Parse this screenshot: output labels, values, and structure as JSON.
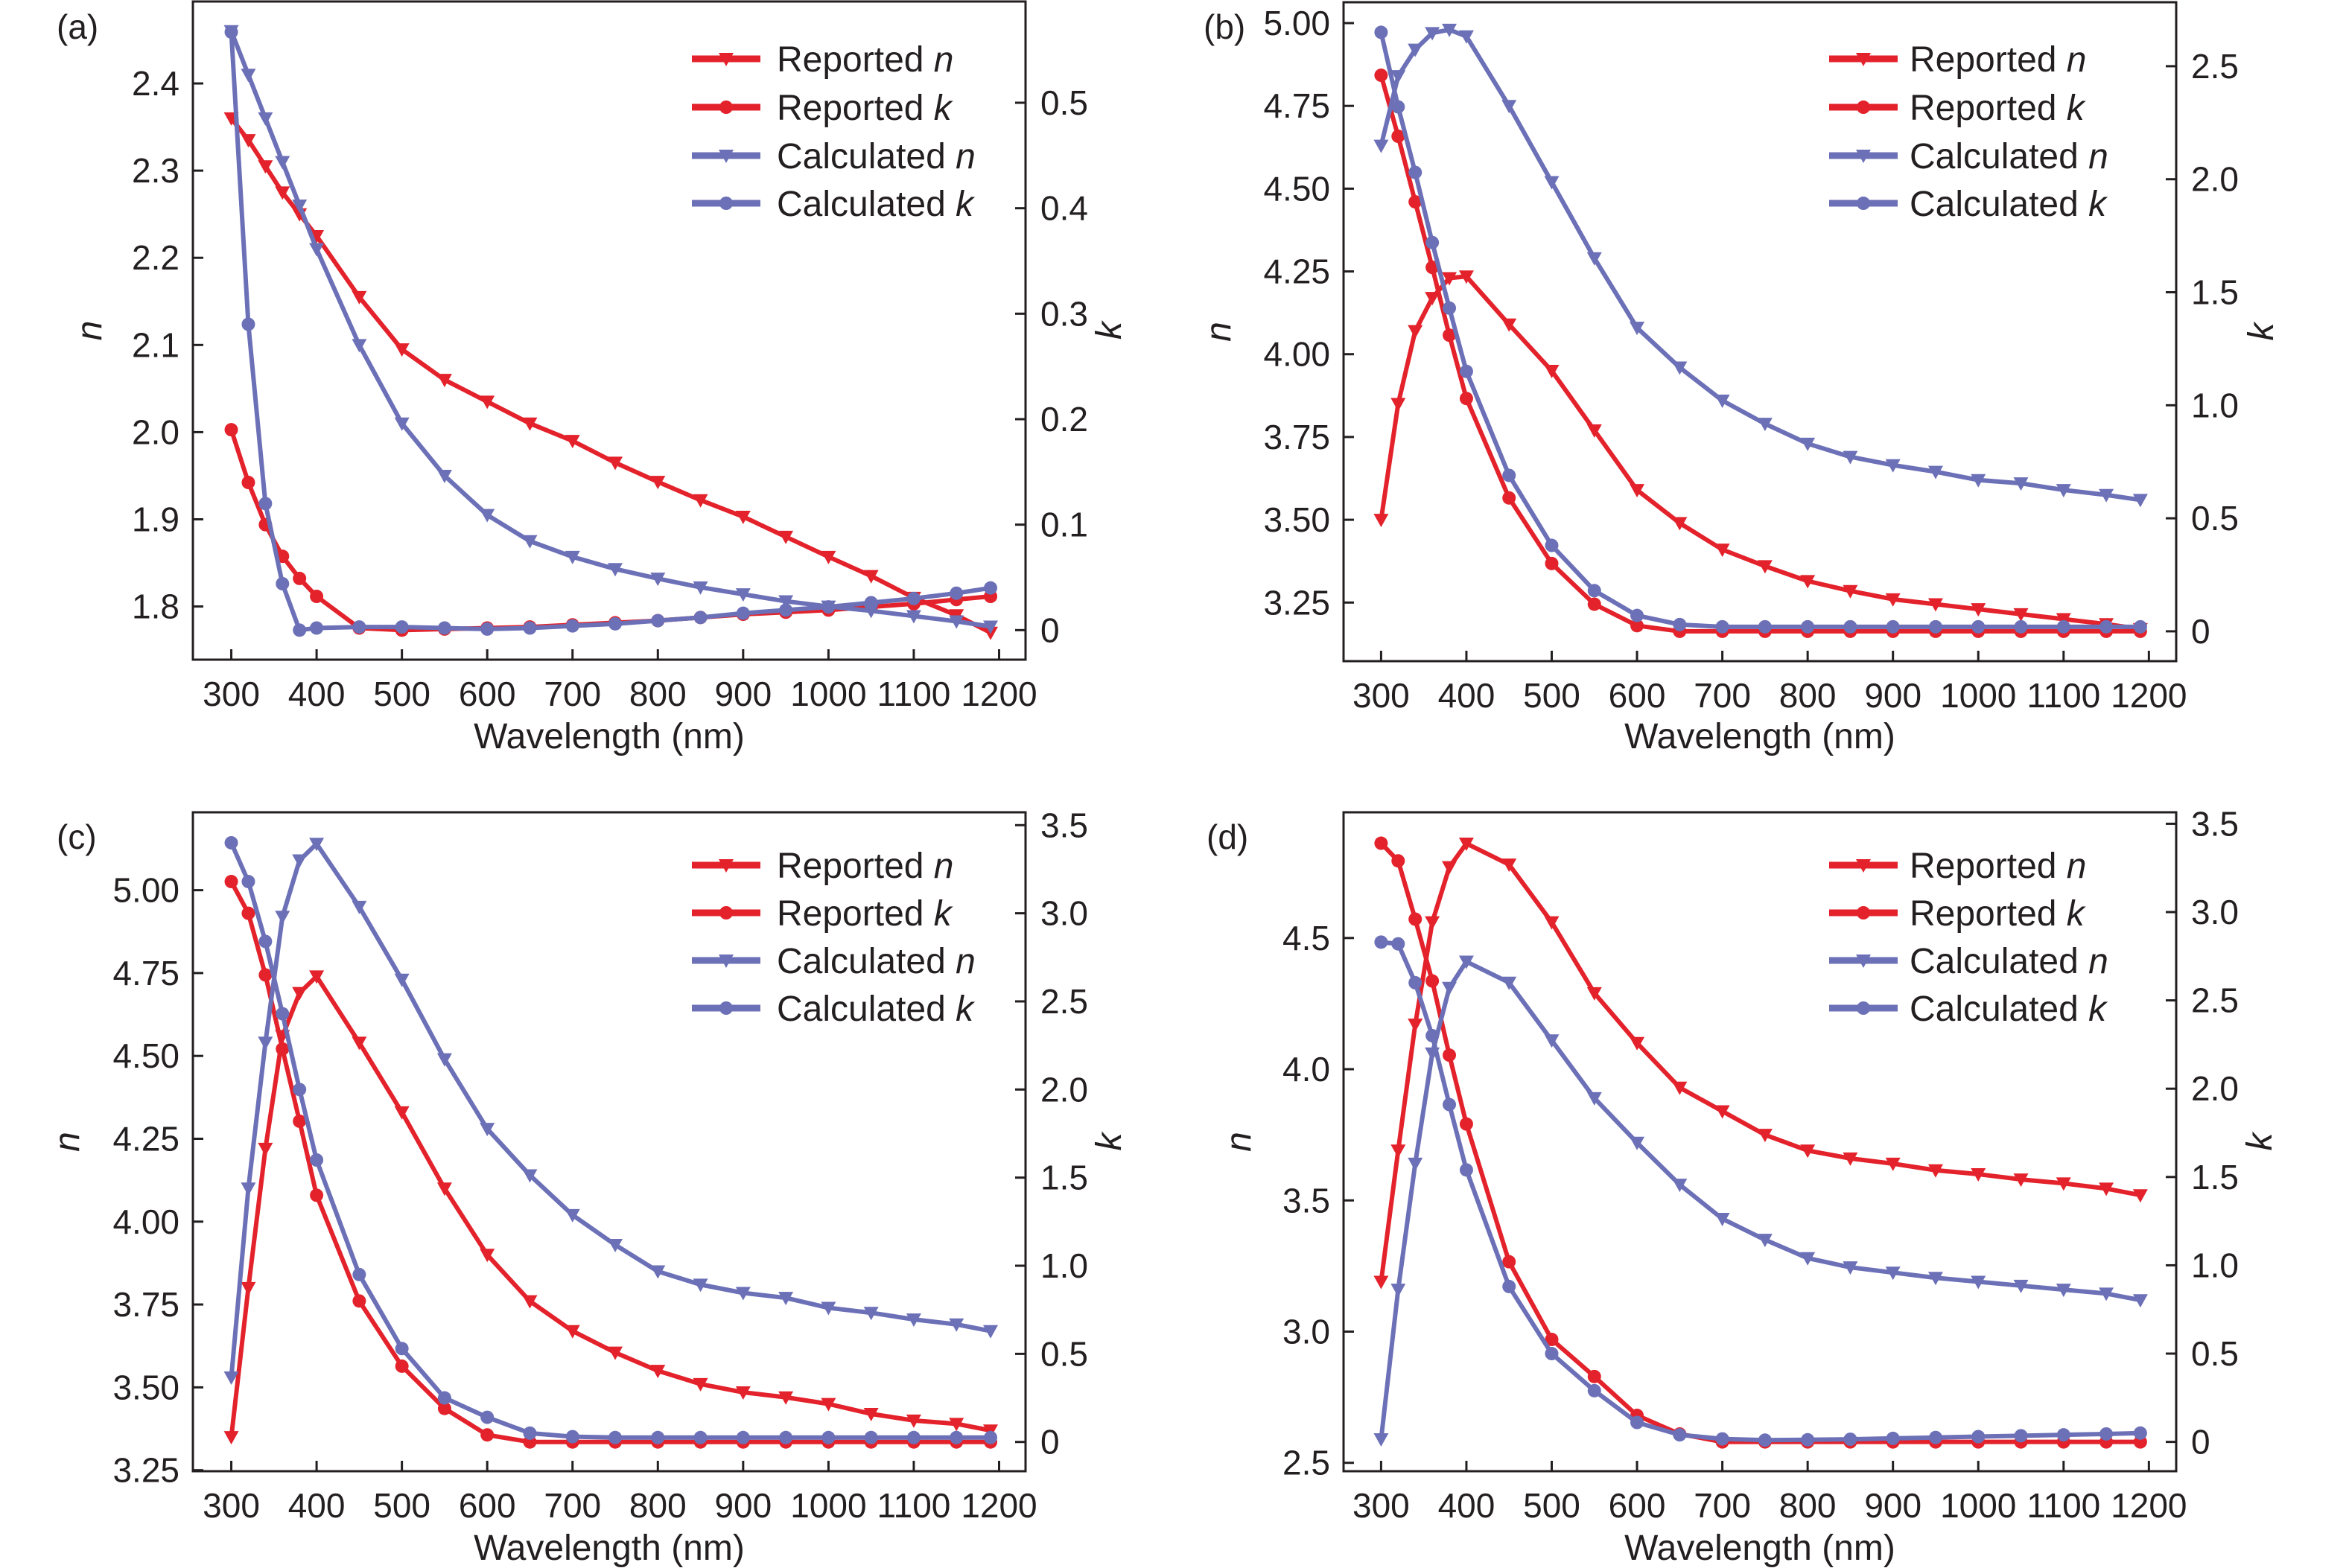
{
  "colors": {
    "reported": "#e3222b",
    "calculated": "#6c70b7",
    "axis": "#231f20"
  },
  "markers": {
    "n": "triangle-down",
    "k": "circle"
  },
  "chart_data": [
    {
      "panel_label": "(a)",
      "type": "line",
      "xlabel": "Wavelength (nm)",
      "ylabel": "n",
      "y2label": "k",
      "xlim": [
        255,
        1231
      ],
      "ylim": [
        1.739,
        2.494
      ],
      "y2lim": [
        -0.028,
        0.596
      ],
      "xticks": [
        300,
        400,
        500,
        600,
        700,
        800,
        900,
        1000,
        1100,
        1200
      ],
      "xtick_labels": [
        "300",
        "400",
        "500",
        "600",
        "700",
        "800",
        "900",
        "1000",
        "1100",
        "1200"
      ],
      "yticks": [
        1.8,
        1.9,
        2.0,
        2.1,
        2.2,
        2.3,
        2.4
      ],
      "ytick_labels": [
        "1.8",
        "1.9",
        "2.0",
        "2.1",
        "2.2",
        "2.3",
        "2.4"
      ],
      "y2ticks": [
        0,
        0.1,
        0.2,
        0.3,
        0.4,
        0.5
      ],
      "y2tick_labels": [
        "0",
        "0.1",
        "0.2",
        "0.3",
        "0.4",
        "0.5"
      ],
      "legend_position": "top-right",
      "x": [
        300,
        320,
        340,
        360,
        380,
        400,
        450,
        500,
        550,
        600,
        650,
        700,
        750,
        800,
        850,
        900,
        950,
        1000,
        1050,
        1100,
        1150,
        1190
      ],
      "series": [
        {
          "name": "Reported n",
          "axis": "left",
          "marker": "n",
          "color": "reported",
          "values": [
            2.36,
            2.335,
            2.305,
            2.275,
            2.25,
            2.225,
            2.155,
            2.095,
            2.06,
            2.035,
            2.01,
            1.99,
            1.965,
            1.943,
            1.922,
            1.903,
            1.88,
            1.857,
            1.835,
            1.81,
            1.79,
            1.77
          ]
        },
        {
          "name": "Reported k",
          "axis": "right",
          "marker": "k",
          "color": "reported",
          "values": [
            0.19,
            0.14,
            0.1,
            0.07,
            0.049,
            0.032,
            0.002,
            0,
            0.001,
            0.002,
            0.003,
            0.005,
            0.007,
            0.009,
            0.012,
            0.015,
            0.017,
            0.019,
            0.022,
            0.025,
            0.029,
            0.032
          ]
        },
        {
          "name": "Calculated n",
          "axis": "left",
          "marker": "n",
          "color": "calculated",
          "values": [
            2.46,
            2.41,
            2.36,
            2.31,
            2.26,
            2.21,
            2.1,
            2.01,
            1.95,
            1.905,
            1.875,
            1.857,
            1.843,
            1.832,
            1.822,
            1.814,
            1.806,
            1.8,
            1.795,
            1.789,
            1.783,
            1.777
          ]
        },
        {
          "name": "Calculated k",
          "axis": "right",
          "marker": "k",
          "color": "calculated",
          "values": [
            0.567,
            0.29,
            0.12,
            0.044,
            0,
            0.002,
            0.003,
            0.003,
            0.002,
            0.001,
            0.002,
            0.004,
            0.006,
            0.009,
            0.012,
            0.016,
            0.019,
            0.022,
            0.026,
            0.03,
            0.035,
            0.04
          ]
        }
      ]
    },
    {
      "panel_label": "(b)",
      "type": "line",
      "xlabel": "Wavelength (nm)",
      "ylabel": "n",
      "y2label": "k",
      "xlim": [
        256,
        1232
      ],
      "ylim": [
        3.073,
        5.063
      ],
      "y2lim": [
        -0.132,
        2.783
      ],
      "xticks": [
        300,
        400,
        500,
        600,
        700,
        800,
        900,
        1000,
        1100,
        1200
      ],
      "xtick_labels": [
        "300",
        "400",
        "500",
        "600",
        "700",
        "800",
        "900",
        "1000",
        "1100",
        "1200"
      ],
      "yticks": [
        3.25,
        3.5,
        3.75,
        4.0,
        4.25,
        4.5,
        4.75,
        5.0
      ],
      "ytick_labels": [
        "3.25",
        "3.50",
        "3.75",
        "4.00",
        "4.25",
        "4.50",
        "4.75",
        "5.00"
      ],
      "y2ticks": [
        0,
        0.5,
        1.0,
        1.5,
        2.0,
        2.5
      ],
      "y2tick_labels": [
        "0",
        "0.5",
        "1.0",
        "1.5",
        "2.0",
        "2.5"
      ],
      "legend_position": "top-right",
      "x": [
        300,
        320,
        340,
        360,
        380,
        400,
        450,
        500,
        550,
        600,
        650,
        700,
        750,
        800,
        850,
        900,
        950,
        1000,
        1050,
        1100,
        1150,
        1190
      ],
      "series": [
        {
          "name": "Reported n",
          "axis": "left",
          "marker": "n",
          "color": "reported",
          "values": [
            3.5,
            3.85,
            4.07,
            4.17,
            4.23,
            4.235,
            4.09,
            3.95,
            3.77,
            3.59,
            3.49,
            3.41,
            3.36,
            3.315,
            3.285,
            3.26,
            3.245,
            3.23,
            3.215,
            3.2,
            3.185,
            3.17
          ]
        },
        {
          "name": "Reported k",
          "axis": "right",
          "marker": "k",
          "color": "reported",
          "values": [
            2.46,
            2.19,
            1.9,
            1.61,
            1.31,
            1.03,
            0.59,
            0.3,
            0.12,
            0.025,
            0,
            0,
            0,
            0,
            0,
            0,
            0,
            0,
            0,
            0,
            0,
            0
          ]
        },
        {
          "name": "Calculated n",
          "axis": "left",
          "marker": "n",
          "color": "calculated",
          "values": [
            4.63,
            4.84,
            4.92,
            4.97,
            4.98,
            4.96,
            4.75,
            4.52,
            4.29,
            4.08,
            3.96,
            3.86,
            3.79,
            3.73,
            3.69,
            3.665,
            3.645,
            3.62,
            3.61,
            3.59,
            3.575,
            3.56
          ]
        },
        {
          "name": "Calculated k",
          "axis": "right",
          "marker": "k",
          "color": "calculated",
          "values": [
            2.65,
            2.32,
            2.03,
            1.72,
            1.43,
            1.15,
            0.69,
            0.38,
            0.18,
            0.07,
            0.03,
            0.02,
            0.02,
            0.02,
            0.02,
            0.02,
            0.02,
            0.02,
            0.02,
            0.02,
            0.02,
            0.02
          ]
        }
      ]
    },
    {
      "panel_label": "(c)",
      "type": "line",
      "xlabel": "Wavelength (nm)",
      "ylabel": "n",
      "y2label": "k",
      "xlim": [
        255,
        1231
      ],
      "ylim": [
        3.247,
        5.235
      ],
      "y2lim": [
        -0.166,
        3.573
      ],
      "xticks": [
        300,
        400,
        500,
        600,
        700,
        800,
        900,
        1000,
        1100,
        1200
      ],
      "xtick_labels": [
        "300",
        "400",
        "500",
        "600",
        "700",
        "800",
        "900",
        "1000",
        "1100",
        "1200"
      ],
      "yticks": [
        3.25,
        3.5,
        3.75,
        4.0,
        4.25,
        4.5,
        4.75,
        5.0
      ],
      "ytick_labels": [
        "3.25",
        "3.50",
        "3.75",
        "4.00",
        "4.25",
        "4.50",
        "4.75",
        "5.00"
      ],
      "y2ticks": [
        0,
        0.5,
        1.0,
        1.5,
        2.0,
        2.5,
        3.0,
        3.5
      ],
      "y2tick_labels": [
        "0",
        "0.5",
        "1.0",
        "1.5",
        "2.0",
        "2.5",
        "3.0",
        "3.5"
      ],
      "legend_position": "top-right",
      "x": [
        300,
        320,
        340,
        360,
        380,
        400,
        450,
        500,
        550,
        600,
        650,
        700,
        750,
        800,
        850,
        900,
        950,
        1000,
        1050,
        1100,
        1150,
        1190
      ],
      "series": [
        {
          "name": "Reported n",
          "axis": "left",
          "marker": "n",
          "color": "reported",
          "values": [
            3.35,
            3.8,
            4.22,
            4.56,
            4.69,
            4.74,
            4.54,
            4.33,
            4.1,
            3.9,
            3.76,
            3.67,
            3.605,
            3.55,
            3.51,
            3.485,
            3.47,
            3.45,
            3.42,
            3.4,
            3.39,
            3.37
          ]
        },
        {
          "name": "Reported k",
          "axis": "right",
          "marker": "k",
          "color": "reported",
          "values": [
            3.18,
            3.0,
            2.65,
            2.23,
            1.82,
            1.4,
            0.8,
            0.43,
            0.19,
            0.04,
            0,
            0,
            0,
            0,
            0,
            0,
            0,
            0,
            0,
            0,
            0,
            0
          ]
        },
        {
          "name": "Calculated n",
          "axis": "left",
          "marker": "n",
          "color": "calculated",
          "values": [
            3.53,
            4.1,
            4.54,
            4.92,
            5.09,
            5.14,
            4.95,
            4.73,
            4.49,
            4.28,
            4.14,
            4.02,
            3.93,
            3.85,
            3.81,
            3.785,
            3.77,
            3.74,
            3.725,
            3.705,
            3.69,
            3.67
          ]
        },
        {
          "name": "Calculated k",
          "axis": "right",
          "marker": "k",
          "color": "calculated",
          "values": [
            3.4,
            3.18,
            2.84,
            2.43,
            2.0,
            1.6,
            0.95,
            0.53,
            0.25,
            0.14,
            0.05,
            0.03,
            0.025,
            0.025,
            0.025,
            0.025,
            0.025,
            0.025,
            0.025,
            0.025,
            0.025,
            0.025
          ]
        }
      ]
    },
    {
      "panel_label": "(d)",
      "type": "line",
      "xlabel": "Wavelength (nm)",
      "ylabel": "n",
      "y2label": "k",
      "xlim": [
        256,
        1232
      ],
      "ylim": [
        2.468,
        4.979
      ],
      "y2lim": [
        -0.166,
        3.565
      ],
      "xticks": [
        300,
        400,
        500,
        600,
        700,
        800,
        900,
        1000,
        1100,
        1200
      ],
      "xtick_labels": [
        "300",
        "400",
        "500",
        "600",
        "700",
        "800",
        "900",
        "1000",
        "1100",
        "1200"
      ],
      "yticks": [
        2.5,
        3.0,
        3.5,
        4.0,
        4.5
      ],
      "ytick_labels": [
        "2.5",
        "3.0",
        "3.5",
        "4.0",
        "4.5"
      ],
      "y2ticks": [
        0,
        0.5,
        1.0,
        1.5,
        2.0,
        2.5,
        3.0,
        3.5
      ],
      "y2tick_labels": [
        "0",
        "0.5",
        "1.0",
        "1.5",
        "2.0",
        "2.5",
        "3.0",
        "3.5"
      ],
      "legend_position": "top-right",
      "x": [
        300,
        320,
        340,
        360,
        380,
        400,
        450,
        500,
        550,
        600,
        650,
        700,
        750,
        800,
        850,
        900,
        950,
        1000,
        1050,
        1100,
        1150,
        1190
      ],
      "series": [
        {
          "name": "Reported n",
          "axis": "left",
          "marker": "n",
          "color": "reported",
          "values": [
            3.19,
            3.69,
            4.17,
            4.56,
            4.77,
            4.86,
            4.78,
            4.56,
            4.29,
            4.1,
            3.93,
            3.84,
            3.75,
            3.69,
            3.66,
            3.64,
            3.615,
            3.6,
            3.58,
            3.565,
            3.545,
            3.52
          ]
        },
        {
          "name": "Reported k",
          "axis": "right",
          "marker": "k",
          "color": "reported",
          "values": [
            3.39,
            3.29,
            2.96,
            2.61,
            2.19,
            1.8,
            1.02,
            0.58,
            0.37,
            0.15,
            0.045,
            0,
            0,
            0,
            0,
            0,
            0,
            0,
            0,
            0,
            0,
            0
          ]
        },
        {
          "name": "Calculated n",
          "axis": "left",
          "marker": "n",
          "color": "calculated",
          "values": [
            2.59,
            3.16,
            3.64,
            4.06,
            4.31,
            4.41,
            4.33,
            4.11,
            3.89,
            3.72,
            3.56,
            3.43,
            3.35,
            3.28,
            3.245,
            3.225,
            3.205,
            3.19,
            3.175,
            3.16,
            3.145,
            3.12
          ]
        },
        {
          "name": "Calculated k",
          "axis": "right",
          "marker": "k",
          "color": "calculated",
          "values": [
            2.83,
            2.82,
            2.6,
            2.3,
            1.91,
            1.54,
            0.88,
            0.5,
            0.29,
            0.11,
            0.04,
            0.017,
            0.01,
            0.012,
            0.015,
            0.02,
            0.025,
            0.03,
            0.035,
            0.04,
            0.045,
            0.05
          ]
        }
      ]
    }
  ]
}
